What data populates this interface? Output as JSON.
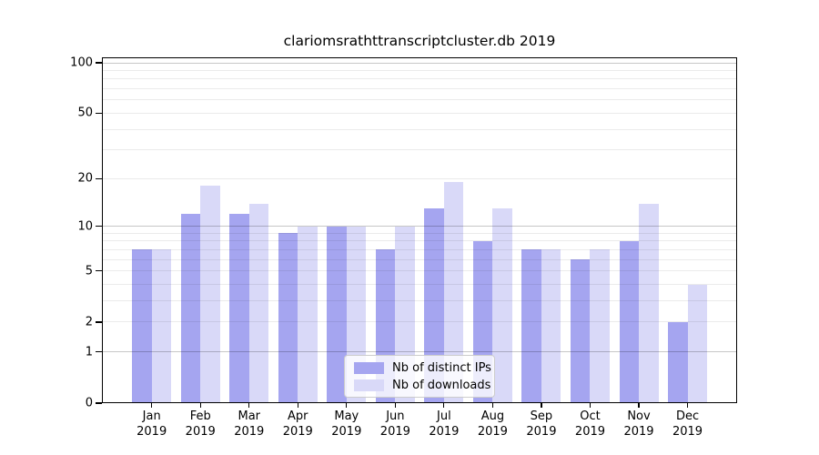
{
  "title": "clariomsrathttranscriptcluster.db 2019",
  "chart_data": {
    "type": "bar",
    "categories": [
      "Jan",
      "Feb",
      "Mar",
      "Apr",
      "May",
      "Jun",
      "Jul",
      "Aug",
      "Sep",
      "Oct",
      "Nov",
      "Dec"
    ],
    "year": "2019",
    "series": [
      {
        "name": "Nb of distinct IPs",
        "color": "#a5a5f0",
        "values": [
          7,
          12,
          12,
          9,
          10,
          7,
          13,
          8,
          7,
          6,
          8,
          2
        ]
      },
      {
        "name": "Nb of downloads",
        "color": "#d9d9f8",
        "values": [
          7,
          18,
          14,
          10,
          10,
          10,
          19,
          13,
          7,
          7,
          14,
          4
        ]
      }
    ],
    "title": "clariomsrathttranscriptcluster.db 2019",
    "xlabel": "",
    "ylabel": "",
    "yscale": "log(value+1)",
    "ylim": [
      0,
      108
    ],
    "yticks": [
      100,
      50,
      20,
      10,
      5,
      2,
      1,
      0
    ],
    "major_gridlines": [
      1,
      10,
      100
    ],
    "minor_gridlines": [
      2,
      3,
      4,
      5,
      6,
      7,
      8,
      9,
      20,
      30,
      40,
      50,
      60,
      70,
      80,
      90
    ],
    "grid": true,
    "legend_position": "lower center"
  },
  "legend": {
    "items": [
      "Nb of distinct IPs",
      "Nb of downloads"
    ]
  }
}
